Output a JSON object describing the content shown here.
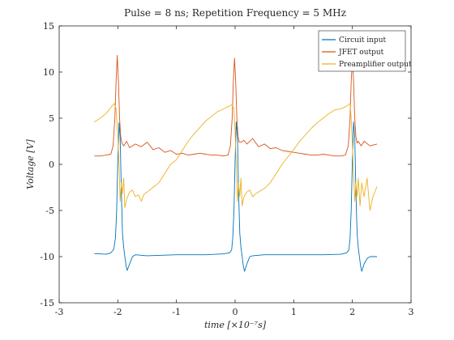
{
  "chart_data": {
    "type": "line",
    "title": "Pulse = 8 ns; Repetition Frequency = 5 MHz",
    "xlabel": "time [×10⁻⁷s]",
    "ylabel": "Voltage [V]",
    "xlim": [
      -3,
      3
    ],
    "ylim": [
      -15,
      15
    ],
    "xticks": [
      "-3",
      "-2",
      "-1",
      "0",
      "1",
      "2",
      "3"
    ],
    "yticks": [
      "-15",
      "-10",
      "-5",
      "0",
      "5",
      "10",
      "15"
    ],
    "grid": false,
    "legend_position": "top-right",
    "series": [
      {
        "name": "Circuit input",
        "color": "#0072BD",
        "x": [
          -2.4,
          -2.3,
          -2.2,
          -2.12,
          -2.07,
          -2.04,
          -2.02,
          -2.0,
          -1.98,
          -1.96,
          -1.94,
          -1.92,
          -1.9,
          -1.88,
          -1.86,
          -1.84,
          -1.8,
          -1.75,
          -1.7,
          -1.5,
          -1.0,
          -0.5,
          -0.2,
          -0.1,
          -0.06,
          -0.04,
          -0.02,
          0.0,
          0.02,
          0.04,
          0.06,
          0.08,
          0.1,
          0.12,
          0.14,
          0.16,
          0.2,
          0.25,
          0.3,
          0.5,
          1.0,
          1.5,
          1.8,
          1.9,
          1.94,
          1.96,
          1.98,
          2.0,
          2.02,
          2.04,
          2.06,
          2.08,
          2.1,
          2.12,
          2.14,
          2.16,
          2.2,
          2.25,
          2.3,
          2.42
        ],
        "values": [
          -9.7,
          -9.7,
          -9.75,
          -9.6,
          -9.2,
          -8.0,
          -5.0,
          0.5,
          4.5,
          3.0,
          -3.0,
          -7.5,
          -9.0,
          -10.0,
          -11.0,
          -11.5,
          -10.8,
          -10.0,
          -9.8,
          -9.9,
          -9.8,
          -9.8,
          -9.7,
          -9.6,
          -9.3,
          -8.0,
          -5.0,
          0.5,
          4.6,
          3.0,
          -3.0,
          -7.5,
          -9.0,
          -10.0,
          -11.0,
          -11.6,
          -10.8,
          -10.0,
          -9.9,
          -9.8,
          -9.8,
          -9.8,
          -9.75,
          -9.6,
          -9.3,
          -8.0,
          -5.0,
          0.5,
          4.6,
          3.0,
          -3.0,
          -7.5,
          -9.0,
          -10.0,
          -11.0,
          -11.6,
          -10.8,
          -10.2,
          -10.0,
          -10.0
        ]
      },
      {
        "name": "JFET output",
        "color": "#D95319",
        "x": [
          -2.4,
          -2.3,
          -2.2,
          -2.12,
          -2.08,
          -2.05,
          -2.03,
          -2.01,
          -1.99,
          -1.97,
          -1.95,
          -1.93,
          -1.9,
          -1.85,
          -1.8,
          -1.7,
          -1.6,
          -1.5,
          -1.4,
          -1.3,
          -1.2,
          -1.1,
          -1.0,
          -0.9,
          -0.8,
          -0.7,
          -0.6,
          -0.5,
          -0.4,
          -0.3,
          -0.2,
          -0.12,
          -0.08,
          -0.05,
          -0.03,
          -0.01,
          0.01,
          0.03,
          0.05,
          0.07,
          0.1,
          0.15,
          0.2,
          0.3,
          0.4,
          0.5,
          0.6,
          0.7,
          0.8,
          0.9,
          1.0,
          1.1,
          1.2,
          1.3,
          1.4,
          1.5,
          1.6,
          1.7,
          1.8,
          1.88,
          1.93,
          1.96,
          1.98,
          2.0,
          2.02,
          2.04,
          2.06,
          2.08,
          2.1,
          2.15,
          2.2,
          2.3,
          2.42
        ],
        "values": [
          0.9,
          0.9,
          1.0,
          1.1,
          2.0,
          5.0,
          9.0,
          11.8,
          9.0,
          5.0,
          3.0,
          2.3,
          2.0,
          2.5,
          1.8,
          2.2,
          1.9,
          2.4,
          1.6,
          1.8,
          1.3,
          1.5,
          1.1,
          1.2,
          1.0,
          1.1,
          1.2,
          1.1,
          1.0,
          1.0,
          0.9,
          1.0,
          2.0,
          5.0,
          9.0,
          11.5,
          9.0,
          5.0,
          3.0,
          2.4,
          2.4,
          2.6,
          2.2,
          2.8,
          1.9,
          2.2,
          1.7,
          1.8,
          1.5,
          1.4,
          1.3,
          1.2,
          1.1,
          1.0,
          1.0,
          1.1,
          1.0,
          0.9,
          0.9,
          1.0,
          2.0,
          5.0,
          9.0,
          11.5,
          9.0,
          5.0,
          3.0,
          2.3,
          2.5,
          2.0,
          2.5,
          2.0,
          2.2
        ]
      },
      {
        "name": "Preamplifier output",
        "color": "#EDB120",
        "x": [
          -2.4,
          -2.3,
          -2.2,
          -2.1,
          -2.06,
          -2.03,
          -2.0,
          -1.98,
          -1.96,
          -1.94,
          -1.92,
          -1.9,
          -1.88,
          -1.85,
          -1.8,
          -1.75,
          -1.7,
          -1.65,
          -1.6,
          -1.55,
          -1.5,
          -1.4,
          -1.3,
          -1.2,
          -1.1,
          -1.0,
          -0.9,
          -0.8,
          -0.7,
          -0.6,
          -0.5,
          -0.4,
          -0.3,
          -0.2,
          -0.1,
          -0.05,
          -0.02,
          0.0,
          0.02,
          0.04,
          0.06,
          0.08,
          0.1,
          0.12,
          0.15,
          0.2,
          0.25,
          0.3,
          0.35,
          0.4,
          0.5,
          0.6,
          0.7,
          0.8,
          0.9,
          1.0,
          1.1,
          1.2,
          1.3,
          1.4,
          1.5,
          1.6,
          1.7,
          1.8,
          1.9,
          1.96,
          1.98,
          2.0,
          2.02,
          2.04,
          2.06,
          2.08,
          2.1,
          2.13,
          2.16,
          2.2,
          2.25,
          2.3,
          2.35,
          2.42
        ],
        "values": [
          4.6,
          5.0,
          5.5,
          6.3,
          6.6,
          6.0,
          3.0,
          0.0,
          -4.0,
          -2.0,
          -3.2,
          -1.5,
          -4.7,
          -3.8,
          -3.0,
          -2.8,
          -3.5,
          -3.3,
          -4.0,
          -3.2,
          -3.0,
          -2.5,
          -2.0,
          -1.0,
          0.0,
          0.5,
          1.5,
          2.5,
          3.3,
          4.0,
          4.7,
          5.2,
          5.7,
          6.0,
          6.3,
          6.5,
          6.0,
          3.5,
          0.0,
          -4.0,
          -2.0,
          -3.5,
          -1.5,
          -4.5,
          -3.5,
          -3.0,
          -2.8,
          -3.5,
          -3.2,
          -3.0,
          -2.6,
          -2.0,
          -1.0,
          0.0,
          0.8,
          1.6,
          2.5,
          3.2,
          3.9,
          4.5,
          5.0,
          5.5,
          5.9,
          6.0,
          6.3,
          6.6,
          5.0,
          2.0,
          -1.0,
          -4.0,
          -2.0,
          -3.5,
          -1.5,
          -4.5,
          -2.0,
          -3.5,
          -1.5,
          -5.0,
          -3.5,
          -2.4
        ]
      }
    ]
  }
}
